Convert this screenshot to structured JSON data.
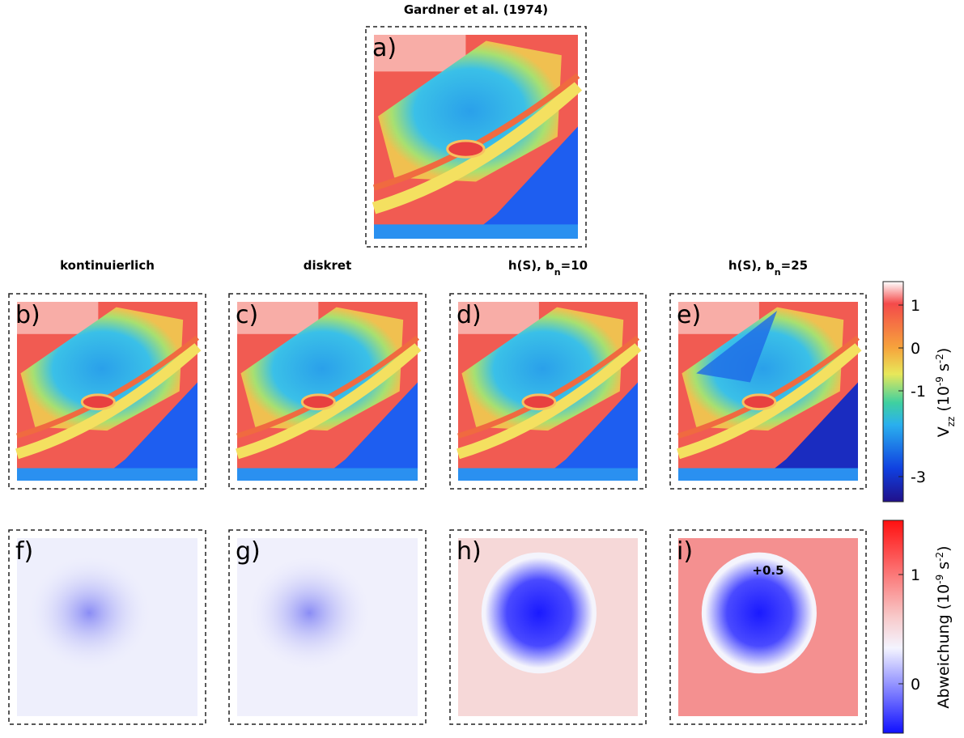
{
  "panels": [
    {
      "letter": "a)",
      "title_parts": [
        "Gardner et al. (1974)"
      ]
    },
    {
      "letter": "b)",
      "title_parts": [
        "kontinuierlich"
      ]
    },
    {
      "letter": "c)",
      "title_parts": [
        "diskret"
      ]
    },
    {
      "letter": "d)",
      "title_parts": [
        "h(S), b",
        "n",
        "=10"
      ]
    },
    {
      "letter": "e)",
      "title_parts": [
        "h(S), b",
        "n",
        "=25"
      ]
    },
    {
      "letter": "f)"
    },
    {
      "letter": "g)"
    },
    {
      "letter": "h)"
    },
    {
      "letter": "i)",
      "annotation": "+0.5"
    }
  ],
  "colorbar_vzz": {
    "label_parts": [
      "V",
      "zz",
      " (10",
      "-9",
      " s",
      "-2",
      ")"
    ],
    "ticks": [
      1,
      0,
      -1,
      -3
    ]
  },
  "colorbar_dev": {
    "label_parts": [
      "Abweichung (10",
      "-9",
      " s",
      "-2",
      ")"
    ],
    "ticks": [
      1,
      0
    ]
  }
}
